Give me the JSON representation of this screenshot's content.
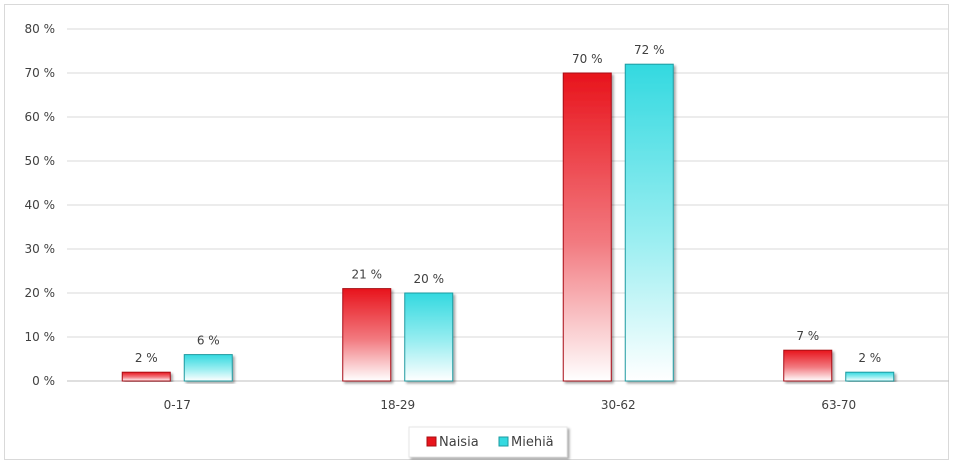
{
  "chart_data": {
    "type": "bar",
    "categories": [
      "0-17",
      "18-29",
      "30-62",
      "63-70"
    ],
    "series": [
      {
        "name": "Naisia",
        "values": [
          2,
          21,
          70,
          7
        ],
        "labels": [
          "2 %",
          "21 %",
          "70 %",
          "7 %"
        ]
      },
      {
        "name": "Miehiä",
        "values": [
          6,
          20,
          72,
          2
        ],
        "labels": [
          "6 %",
          "20 %",
          "72 %",
          "2 %"
        ]
      }
    ],
    "y_ticks": [
      "0 %",
      "10 %",
      "20 %",
      "30 %",
      "40 %",
      "50 %",
      "60 %",
      "70 %",
      "80 %"
    ],
    "ylim": [
      0,
      80
    ],
    "grid": true,
    "legend_position": "bottom",
    "colors": {
      "series_0": "#e8141c",
      "series_1": "#33d9e0",
      "grid": "#d9d9d9",
      "text": "#404040"
    }
  }
}
